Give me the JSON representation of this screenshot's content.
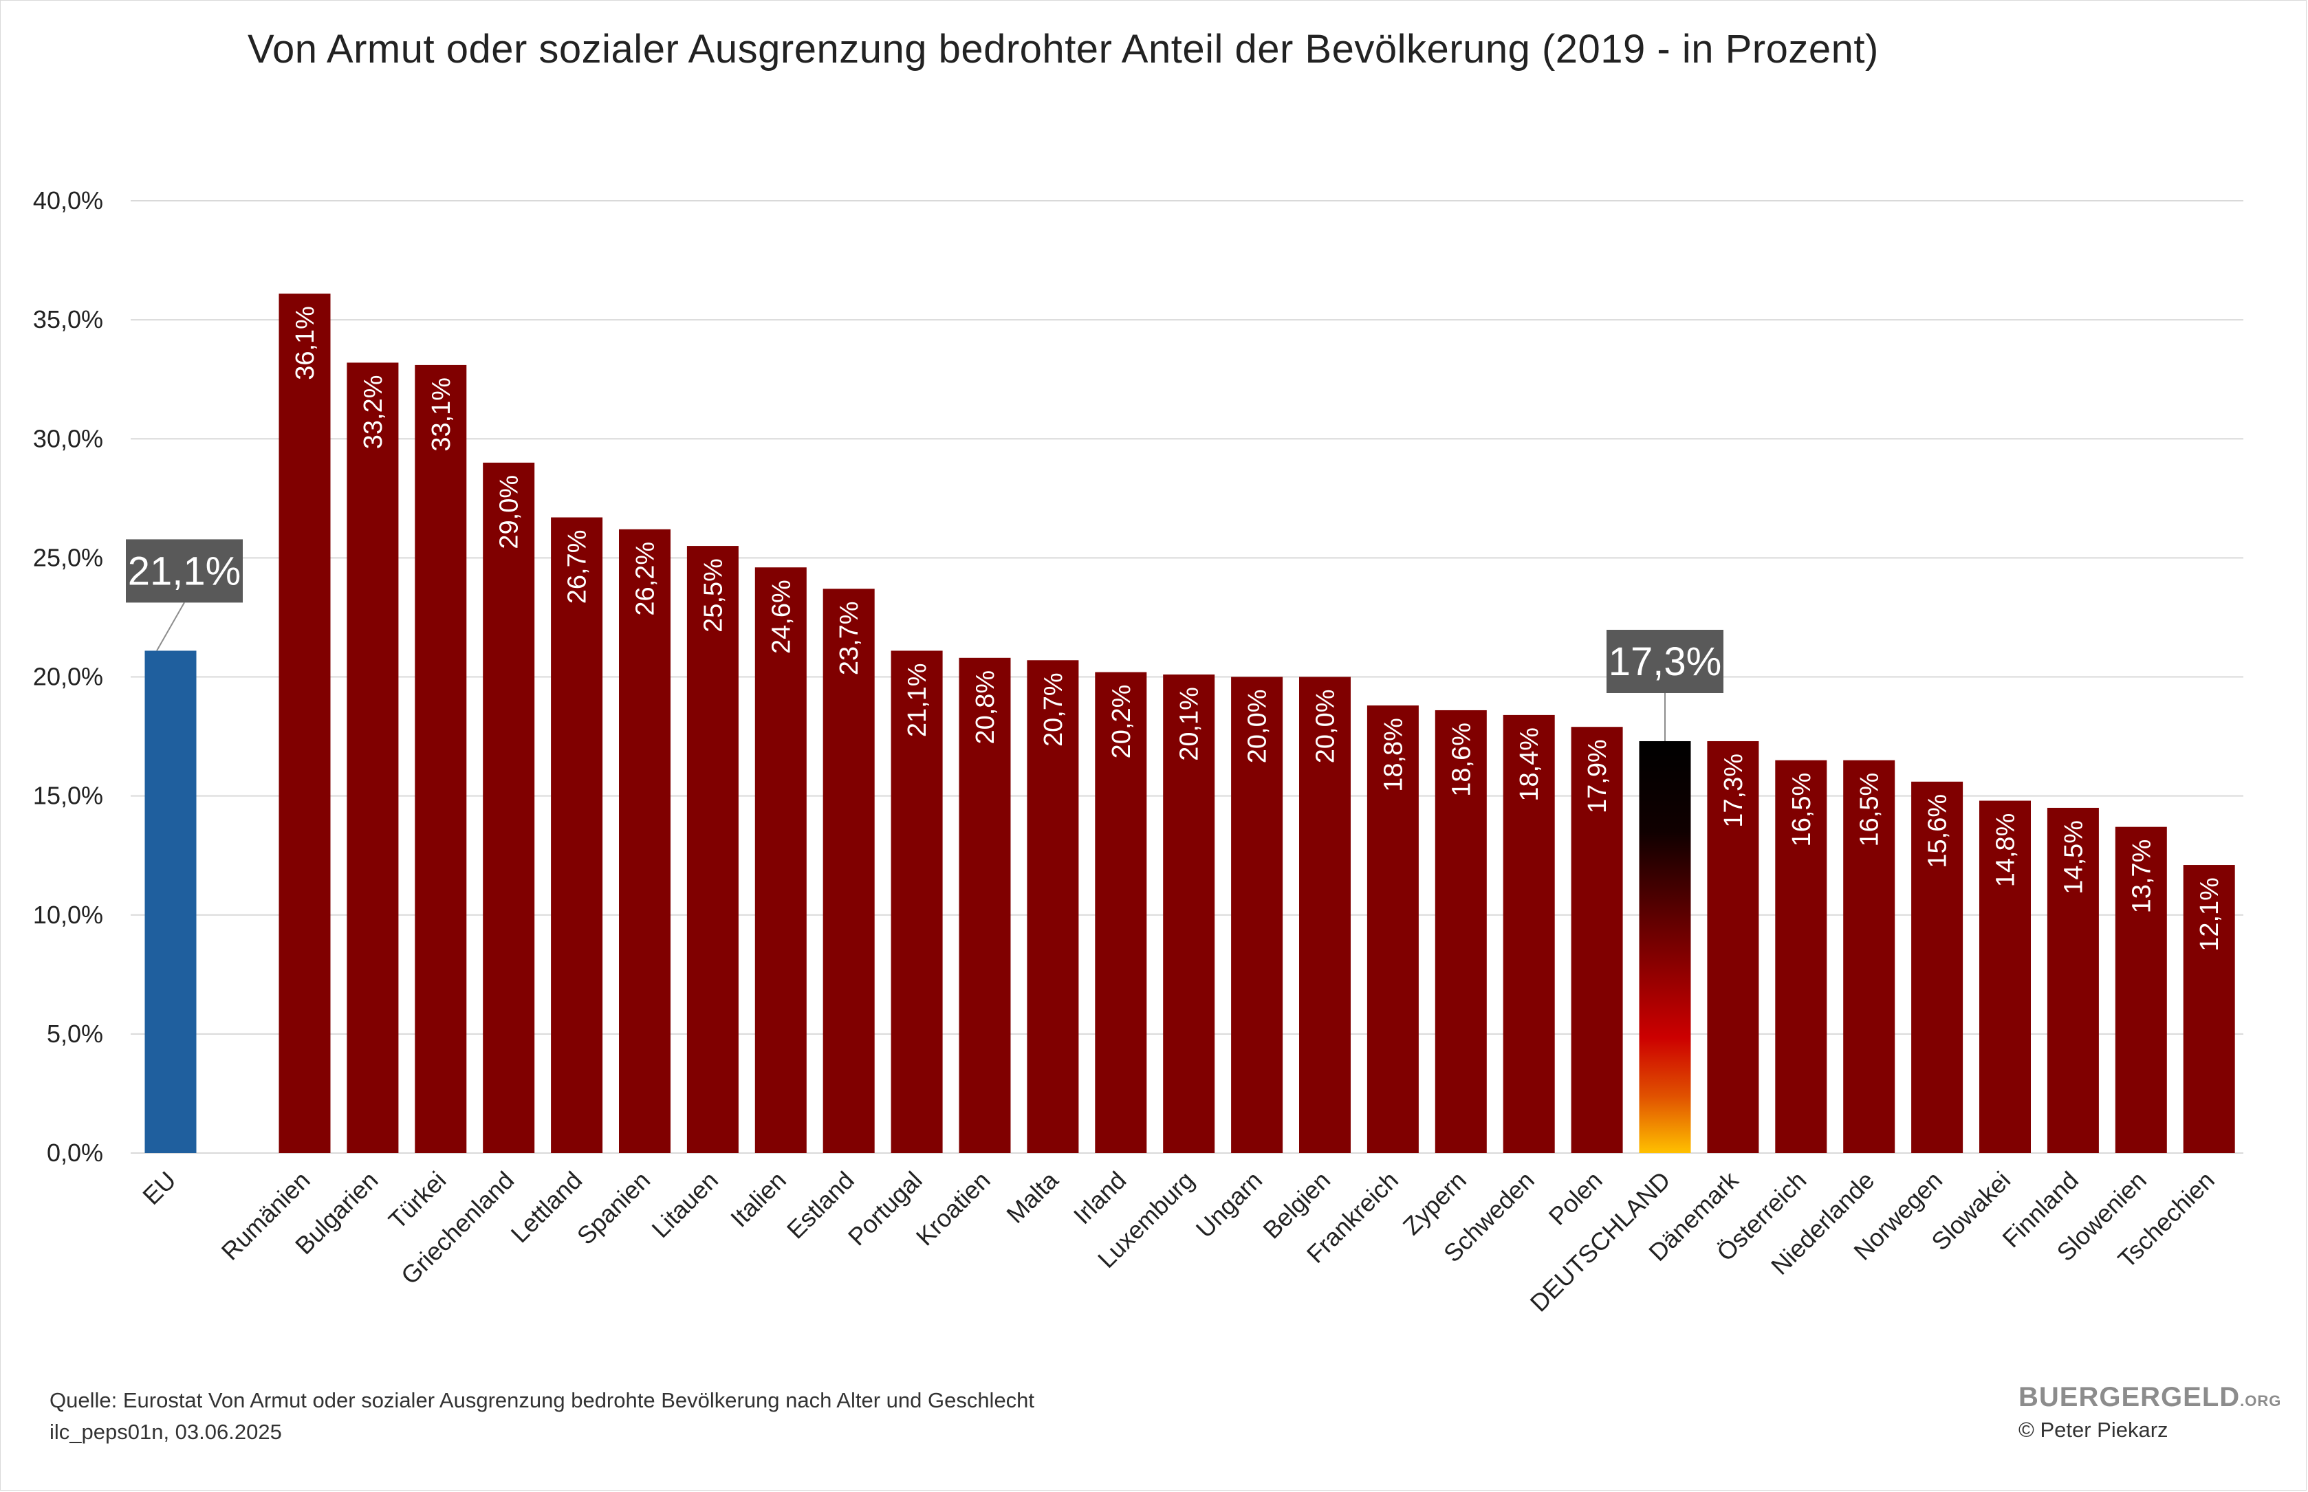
{
  "title": "Von Armut oder sozialer Ausgrenzung bedrohter Anteil der Bevölkerung (2019 - in Prozent)",
  "source": {
    "line1": "Quelle: Eurostat Von Armut oder sozialer Ausgrenzung bedrohte Bevölkerung nach Alter und Geschlecht",
    "line2": "ilc_peps01n, 03.06.2025"
  },
  "brand": {
    "name": "BUERGERGELD",
    "suffix": ".ORG",
    "copyright": "© Peter Piekarz"
  },
  "colors": {
    "bar": "#800000",
    "eu_bar": "#1f5f9e",
    "callout": "#595959",
    "grid": "#d9d9d9",
    "germany_gradient": [
      "#000000",
      "#cc0000",
      "#ffcc00"
    ]
  },
  "chart_data": {
    "type": "bar",
    "ylim": [
      0,
      40
    ],
    "yticks": [
      "0,0%",
      "5,0%",
      "10,0%",
      "15,0%",
      "20,0%",
      "25,0%",
      "30,0%",
      "35,0%",
      "40,0%"
    ],
    "grid": true,
    "categories": [
      "EU",
      "Rumänien",
      "Bulgarien",
      "Türkei",
      "Griechenland",
      "Lettland",
      "Spanien",
      "Litauen",
      "Italien",
      "Estland",
      "Portugal",
      "Kroatien",
      "Malta",
      "Irland",
      "Luxemburg",
      "Ungarn",
      "Belgien",
      "Frankreich",
      "Zypern",
      "Schweden",
      "Polen",
      "DEUTSCHLAND",
      "Dänemark",
      "Österreich",
      "Niederlande",
      "Norwegen",
      "Slowakei",
      "Finnland",
      "Slowenien",
      "Tschechien"
    ],
    "values": [
      21.1,
      36.1,
      33.2,
      33.1,
      29.0,
      26.7,
      26.2,
      25.5,
      24.6,
      23.7,
      21.1,
      20.8,
      20.7,
      20.2,
      20.1,
      20.0,
      20.0,
      18.8,
      18.6,
      18.4,
      17.9,
      17.3,
      17.3,
      16.5,
      16.5,
      15.6,
      14.8,
      14.5,
      13.7,
      12.1
    ],
    "labels": [
      "21,1%",
      "36,1%",
      "33,2%",
      "33,1%",
      "29,0%",
      "26,7%",
      "26,2%",
      "25,5%",
      "24,6%",
      "23,7%",
      "21,1%",
      "20,8%",
      "20,7%",
      "20,2%",
      "20,1%",
      "20,0%",
      "20,0%",
      "18,8%",
      "18,6%",
      "18,4%",
      "17,9%",
      "17,3%",
      "17,3%",
      "16,5%",
      "16,5%",
      "15,6%",
      "14,8%",
      "14,5%",
      "13,7%",
      "12,1%"
    ],
    "highlight": {
      "EU": "callout",
      "DEUTSCHLAND": "callout"
    }
  }
}
